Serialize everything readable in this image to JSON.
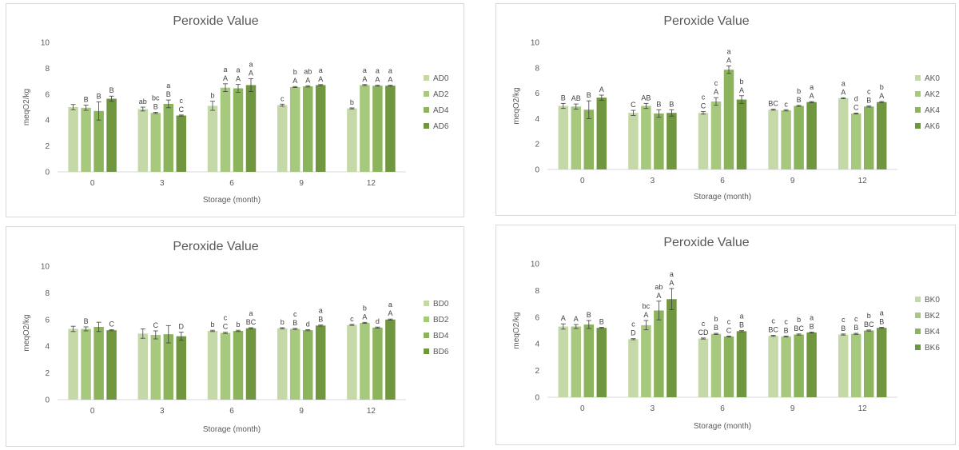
{
  "colors": [
    "#c5d9a8",
    "#a7c97e",
    "#8cb45c",
    "#70963f"
  ],
  "chart_data": [
    {
      "type": "bar",
      "title": "Peroxide Value",
      "xlabel": "Storage (month)",
      "ylabel": "meqO2/kg",
      "ylim": [
        0,
        10
      ],
      "yticks": [
        0,
        2,
        4,
        6,
        8,
        10
      ],
      "categories": [
        "0",
        "3",
        "6",
        "9",
        "12"
      ],
      "legend_position": "right",
      "grid": false,
      "series": [
        {
          "name": "AD0",
          "values": [
            5.0,
            4.85,
            5.1,
            5.15,
            4.9
          ],
          "errors": [
            0.2,
            0.15,
            0.35,
            0.08,
            0.04
          ],
          "labels": [
            [
              "",
              ""
            ],
            [
              "",
              "ab"
            ],
            [
              "",
              "b"
            ],
            [
              "",
              "c"
            ],
            [
              "",
              "b"
            ]
          ]
        },
        {
          "name": "AD2",
          "values": [
            4.95,
            4.55,
            6.5,
            6.55,
            6.7
          ],
          "errors": [
            0.2,
            0.05,
            0.3,
            0.04,
            0.04
          ],
          "labels": [
            [
              "",
              "B"
            ],
            [
              "B",
              "bc"
            ],
            [
              "A",
              "a"
            ],
            [
              "A",
              "b"
            ],
            [
              "A",
              "a"
            ]
          ]
        },
        {
          "name": "AD4",
          "values": [
            4.7,
            5.25,
            6.45,
            6.6,
            6.65
          ],
          "errors": [
            0.7,
            0.3,
            0.3,
            0.05,
            0.04
          ],
          "labels": [
            [
              "",
              "B"
            ],
            [
              "B",
              "a"
            ],
            [
              "A",
              "a"
            ],
            [
              "A",
              "ab"
            ],
            [
              "A",
              "a"
            ]
          ]
        },
        {
          "name": "AD6",
          "values": [
            5.65,
            4.35,
            6.7,
            6.7,
            6.65
          ],
          "errors": [
            0.2,
            0.04,
            0.5,
            0.04,
            0.04
          ],
          "labels": [
            [
              "",
              "B"
            ],
            [
              "C",
              "c"
            ],
            [
              "A",
              "a"
            ],
            [
              "A",
              "a"
            ],
            [
              "A",
              "a"
            ]
          ]
        }
      ]
    },
    {
      "type": "bar",
      "title": "Peroxide Value",
      "xlabel": "Storage (month)",
      "ylabel": "meqO2/kg",
      "ylim": [
        0,
        10
      ],
      "yticks": [
        0,
        2,
        4,
        6,
        8,
        10
      ],
      "categories": [
        "0",
        "3",
        "6",
        "9",
        "12"
      ],
      "legend_position": "right",
      "grid": false,
      "series": [
        {
          "name": "AK0",
          "values": [
            5.0,
            4.45,
            4.45,
            4.7,
            5.6
          ],
          "errors": [
            0.2,
            0.2,
            0.1,
            0.04,
            0.04
          ],
          "labels": [
            [
              "",
              "B"
            ],
            [
              "",
              "C"
            ],
            [
              "C",
              "c"
            ],
            [
              "",
              "BC"
            ],
            [
              "A",
              "a"
            ]
          ]
        },
        {
          "name": "AK2",
          "values": [
            4.95,
            5.0,
            5.35,
            4.65,
            4.4
          ],
          "errors": [
            0.2,
            0.2,
            0.3,
            0.05,
            0.04
          ],
          "labels": [
            [
              "",
              "AB"
            ],
            [
              "",
              "AB"
            ],
            [
              "A",
              "c"
            ],
            [
              "",
              "c"
            ],
            [
              "C",
              "d"
            ]
          ]
        },
        {
          "name": "AK4",
          "values": [
            4.7,
            4.4,
            7.85,
            5.0,
            4.95
          ],
          "errors": [
            0.7,
            0.3,
            0.3,
            0.04,
            0.04
          ],
          "labels": [
            [
              "",
              "B"
            ],
            [
              "",
              "B"
            ],
            [
              "A",
              "a"
            ],
            [
              "B",
              "b"
            ],
            [
              "B",
              "c"
            ]
          ]
        },
        {
          "name": "AK6",
          "values": [
            5.65,
            4.45,
            5.5,
            5.3,
            5.3
          ],
          "errors": [
            0.2,
            0.25,
            0.3,
            0.04,
            0.05
          ],
          "labels": [
            [
              "",
              "A"
            ],
            [
              "",
              "B"
            ],
            [
              "A",
              "b"
            ],
            [
              "A",
              "a"
            ],
            [
              "A",
              "b"
            ]
          ]
        }
      ]
    },
    {
      "type": "bar",
      "title": "Peroxide Value",
      "xlabel": "Storage (month)",
      "ylabel": "meqO2/kg",
      "ylim": [
        0,
        10
      ],
      "yticks": [
        0,
        2,
        4,
        6,
        8,
        10
      ],
      "categories": [
        "0",
        "3",
        "6",
        "9",
        "12"
      ],
      "legend_position": "right",
      "grid": false,
      "series": [
        {
          "name": "BD0",
          "values": [
            5.3,
            4.95,
            5.15,
            5.35,
            5.6
          ],
          "errors": [
            0.2,
            0.35,
            0.05,
            0.04,
            0.04
          ],
          "labels": [
            [
              "",
              ""
            ],
            [
              "",
              ""
            ],
            [
              "",
              "b"
            ],
            [
              "",
              "b"
            ],
            [
              "",
              "c"
            ]
          ]
        },
        {
          "name": "BD2",
          "values": [
            5.3,
            4.85,
            5.0,
            5.3,
            5.75
          ],
          "errors": [
            0.15,
            0.3,
            0.05,
            0.04,
            0.04
          ],
          "labels": [
            [
              "",
              "B"
            ],
            [
              "",
              "C"
            ],
            [
              "C",
              "c"
            ],
            [
              "B",
              "c"
            ],
            [
              "A",
              "b"
            ]
          ]
        },
        {
          "name": "BD4",
          "values": [
            5.45,
            4.9,
            5.15,
            5.2,
            5.4
          ],
          "errors": [
            0.35,
            0.65,
            0.05,
            0.04,
            0.04
          ],
          "labels": [
            [
              "",
              ""
            ],
            [
              "",
              ""
            ],
            [
              "",
              "b"
            ],
            [
              "",
              "d"
            ],
            [
              "",
              "d"
            ]
          ]
        },
        {
          "name": "BD6",
          "values": [
            5.2,
            4.75,
            5.35,
            5.55,
            6.0
          ],
          "errors": [
            0.04,
            0.3,
            0.04,
            0.04,
            0.04
          ],
          "labels": [
            [
              "",
              "C"
            ],
            [
              "",
              "D"
            ],
            [
              "BC",
              "a"
            ],
            [
              "B",
              "a"
            ],
            [
              "A",
              "a"
            ]
          ]
        }
      ]
    },
    {
      "type": "bar",
      "title": "Peroxide Value",
      "xlabel": "Storage (month)",
      "ylabel": "meqO2/kg",
      "ylim": [
        0,
        10
      ],
      "yticks": [
        0,
        2,
        4,
        6,
        8,
        10
      ],
      "categories": [
        "0",
        "3",
        "6",
        "9",
        "12"
      ],
      "legend_position": "right",
      "grid": false,
      "series": [
        {
          "name": "BK0",
          "values": [
            5.3,
            4.35,
            4.4,
            4.6,
            4.7
          ],
          "errors": [
            0.2,
            0.04,
            0.04,
            0.04,
            0.04
          ],
          "labels": [
            [
              "",
              "A"
            ],
            [
              "D",
              "c"
            ],
            [
              "CD",
              "c"
            ],
            [
              "BC",
              "c"
            ],
            [
              "B",
              "c"
            ]
          ]
        },
        {
          "name": "BK2",
          "values": [
            5.3,
            5.4,
            4.75,
            4.55,
            4.75
          ],
          "errors": [
            0.15,
            0.35,
            0.04,
            0.04,
            0.04
          ],
          "labels": [
            [
              "",
              "A"
            ],
            [
              "A",
              "bc"
            ],
            [
              "B",
              "b"
            ],
            [
              "B",
              "c"
            ],
            [
              "B",
              "c"
            ]
          ]
        },
        {
          "name": "BK4",
          "values": [
            5.45,
            6.5,
            4.55,
            4.7,
            5.0
          ],
          "errors": [
            0.3,
            0.7,
            0.04,
            0.04,
            0.04
          ],
          "labels": [
            [
              "",
              "B"
            ],
            [
              "A",
              "ab"
            ],
            [
              "C",
              "c"
            ],
            [
              "BC",
              "b"
            ],
            [
              "BC",
              "b"
            ]
          ]
        },
        {
          "name": "BK6",
          "values": [
            5.2,
            7.35,
            4.95,
            4.85,
            5.2
          ],
          "errors": [
            0.04,
            0.8,
            0.04,
            0.04,
            0.04
          ],
          "labels": [
            [
              "",
              "B"
            ],
            [
              "A",
              "a"
            ],
            [
              "B",
              "a"
            ],
            [
              "B",
              "a"
            ],
            [
              "B",
              "a"
            ]
          ]
        }
      ]
    }
  ]
}
